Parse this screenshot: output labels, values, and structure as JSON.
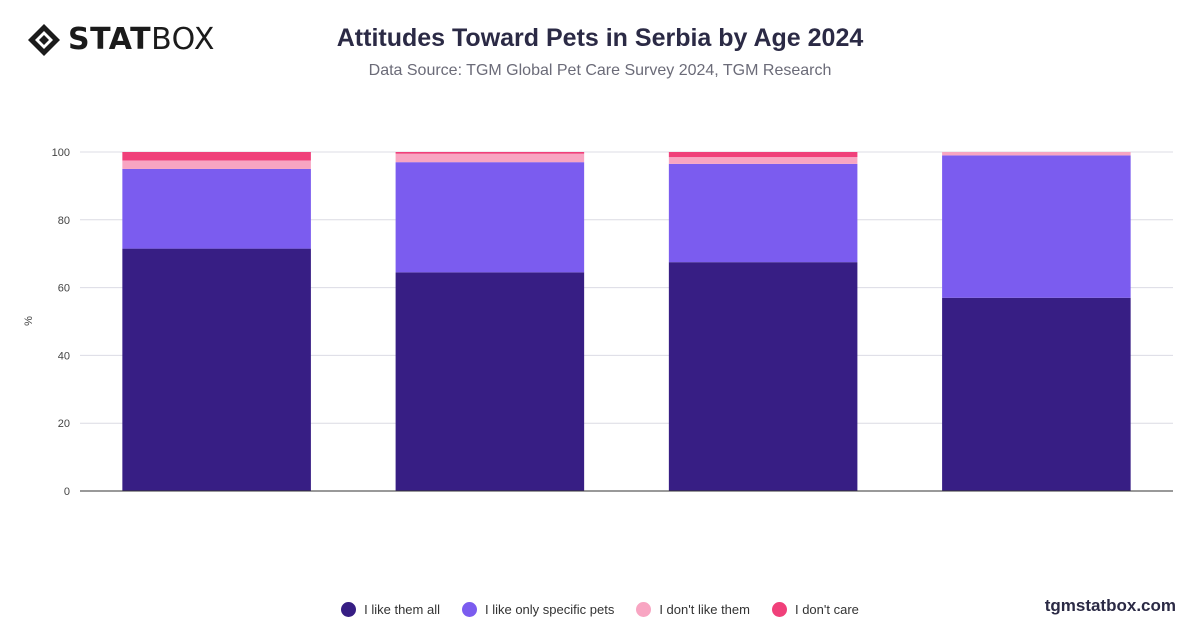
{
  "brand": {
    "logo_bold": "STAT",
    "logo_light": "BOX",
    "watermark": "tgmstatbox.com"
  },
  "header": {
    "title": "Attitudes Toward Pets in Serbia by Age 2024",
    "subtitle": "Data Source: TGM Global Pet Care Survey 2024, TGM Research"
  },
  "chart_data": {
    "type": "bar",
    "stacked": true,
    "categories": [
      "",
      "",
      "",
      ""
    ],
    "ylabel": "%",
    "ylim": [
      0,
      100
    ],
    "yticks": [
      0,
      20,
      40,
      60,
      80,
      100
    ],
    "grid": true,
    "legend_position": "bottom",
    "series": [
      {
        "name": "I like them all",
        "color": "#371e84",
        "values": [
          71.5,
          64.5,
          67.5,
          57.0
        ]
      },
      {
        "name": "I like only specific pets",
        "color": "#7b5cef",
        "values": [
          23.5,
          32.5,
          29.0,
          42.0
        ]
      },
      {
        "name": "I don't like them",
        "color": "#f8a5c2",
        "values": [
          2.5,
          2.5,
          2.0,
          1.0
        ]
      },
      {
        "name": "I don't care",
        "color": "#f0407a",
        "values": [
          2.5,
          0.5,
          1.5,
          0.0
        ]
      }
    ]
  }
}
